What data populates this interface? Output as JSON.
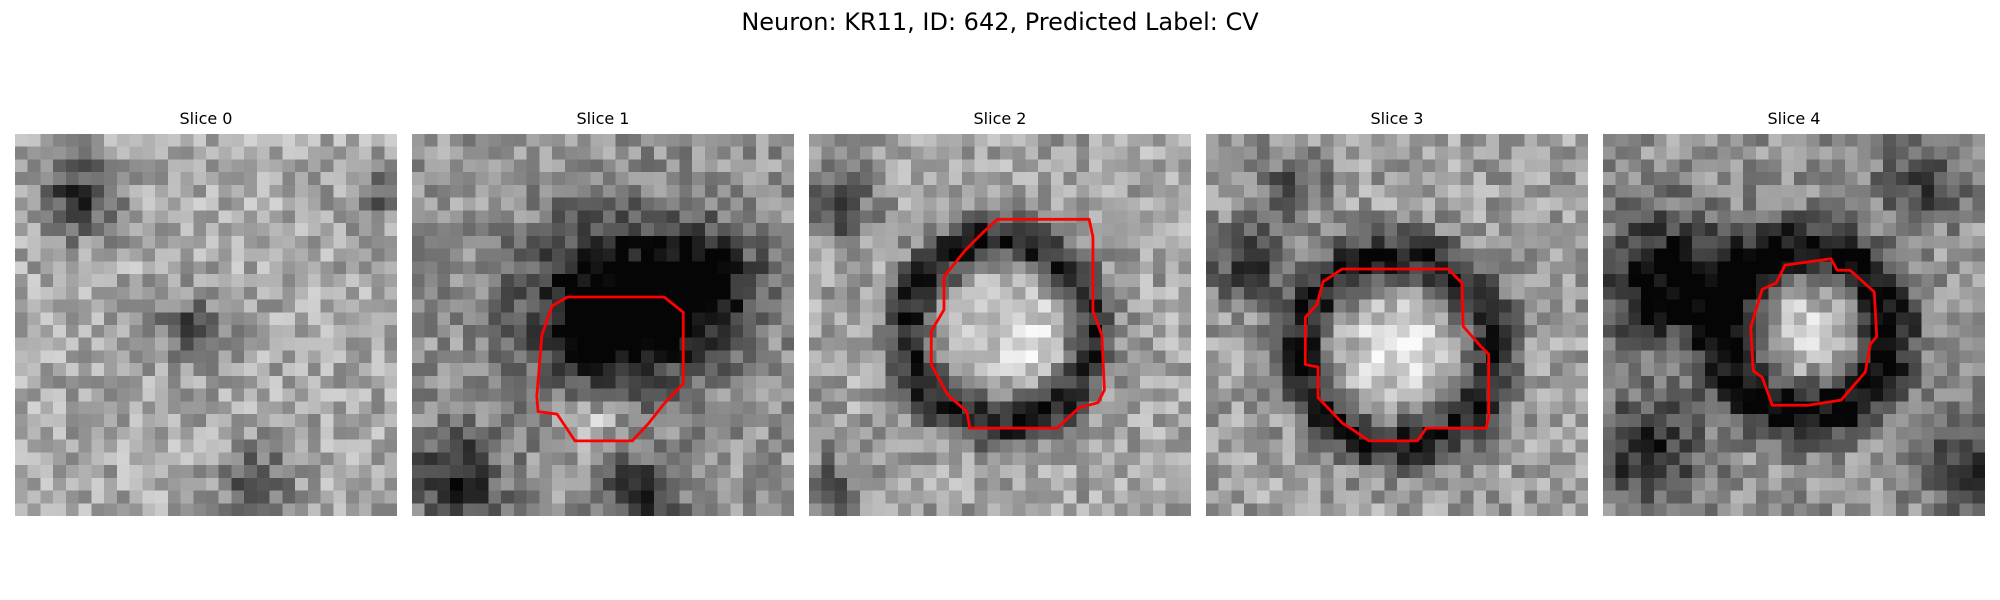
{
  "figure": {
    "title": "Neuron: KR11, ID: 642, Predicted Label: CV"
  },
  "colors": {
    "contour": "#ff0000",
    "background": "#ffffff"
  },
  "panels": [
    {
      "title": "Slice 0",
      "has_contour": false
    },
    {
      "title": "Slice 1",
      "has_contour": true
    },
    {
      "title": "Slice 2",
      "has_contour": true
    },
    {
      "title": "Slice 3",
      "has_contour": true
    },
    {
      "title": "Slice 4",
      "has_contour": true
    }
  ]
}
